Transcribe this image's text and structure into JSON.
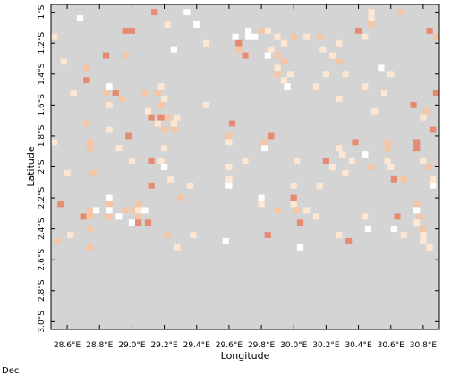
{
  "map": {
    "xlabel": "Longitude",
    "ylabel": "Latitude",
    "x_ticks": [
      "28.6°E",
      "28.8°E",
      "29.0°E",
      "29.2°E",
      "29.4°E",
      "29.6°E",
      "29.8°E",
      "30.0°E",
      "30.2°E",
      "30.4°E",
      "30.6°E",
      "30.8°E"
    ],
    "x_tick_values": [
      28.6,
      28.8,
      29.0,
      29.2,
      29.4,
      29.6,
      29.8,
      30.0,
      30.2,
      30.4,
      30.6,
      30.8
    ],
    "y_ticks": [
      "1°S",
      "1.2°S",
      "1.4°S",
      "1.6°S",
      "1.8°S",
      "2°S",
      "2.2°S",
      "2.4°S",
      "2.6°S",
      "2.8°S",
      "3.0°S"
    ],
    "y_tick_values": [
      -1.0,
      -1.2,
      -1.4,
      -1.6,
      -1.8,
      -2.0,
      -2.2,
      -2.4,
      -2.6,
      -2.8,
      -3.0
    ],
    "lon_range": [
      28.5,
      30.9
    ],
    "lat_range": [
      -3.05,
      -0.95
    ],
    "cell_size_deg": 0.04,
    "background_color": "#d4d4d4",
    "category_colors": {
      "white": "#ffffff",
      "light": "#fde7d2",
      "medium": "#f6c5a4",
      "dark": "#e78a72"
    },
    "cells": [
      [
        "dark",
        29.14,
        -1.0
      ],
      [
        "white",
        29.34,
        -1.0
      ],
      [
        "light",
        30.48,
        -1.0
      ],
      [
        "medium",
        30.66,
        -1.0
      ],
      [
        "white",
        28.68,
        -1.04
      ],
      [
        "light",
        30.48,
        -1.04
      ],
      [
        "light",
        29.22,
        -1.08
      ],
      [
        "white",
        29.4,
        -1.08
      ],
      [
        "medium",
        30.48,
        -1.08
      ],
      [
        "dark",
        28.96,
        -1.12
      ],
      [
        "dark",
        29.0,
        -1.12
      ],
      [
        "white",
        29.72,
        -1.12
      ],
      [
        "medium",
        29.8,
        -1.12
      ],
      [
        "light",
        29.84,
        -1.12
      ],
      [
        "dark",
        30.4,
        -1.12
      ],
      [
        "dark",
        30.84,
        -1.12
      ],
      [
        "light",
        28.52,
        -1.16
      ],
      [
        "white",
        29.64,
        -1.16
      ],
      [
        "white",
        29.72,
        -1.16
      ],
      [
        "white",
        29.76,
        -1.16
      ],
      [
        "light",
        29.9,
        -1.16
      ],
      [
        "medium",
        30.0,
        -1.16
      ],
      [
        "light",
        30.08,
        -1.16
      ],
      [
        "medium",
        30.16,
        -1.16
      ],
      [
        "light",
        30.44,
        -1.16
      ],
      [
        "medium",
        30.88,
        -1.16
      ],
      [
        "light",
        29.46,
        -1.2
      ],
      [
        "dark",
        29.66,
        -1.2
      ],
      [
        "light",
        29.94,
        -1.2
      ],
      [
        "light",
        30.28,
        -1.2
      ],
      [
        "white",
        29.26,
        -1.24
      ],
      [
        "medium",
        29.66,
        -1.24
      ],
      [
        "light",
        29.86,
        -1.24
      ],
      [
        "light",
        30.18,
        -1.24
      ],
      [
        "dark",
        28.84,
        -1.28
      ],
      [
        "medium",
        28.96,
        -1.28
      ],
      [
        "dark",
        29.7,
        -1.28
      ],
      [
        "white",
        29.84,
        -1.28
      ],
      [
        "medium",
        29.9,
        -1.28
      ],
      [
        "light",
        30.24,
        -1.28
      ],
      [
        "light",
        28.58,
        -1.32
      ],
      [
        "medium",
        29.94,
        -1.32
      ],
      [
        "medium",
        30.28,
        -1.32
      ],
      [
        "medium",
        28.72,
        -1.36
      ],
      [
        "light",
        29.9,
        -1.36
      ],
      [
        "white",
        30.54,
        -1.36
      ],
      [
        "medium",
        29.9,
        -1.4
      ],
      [
        "light",
        29.98,
        -1.4
      ],
      [
        "light",
        30.2,
        -1.4
      ],
      [
        "light",
        30.32,
        -1.4
      ],
      [
        "light",
        30.6,
        -1.4
      ],
      [
        "dark",
        28.72,
        -1.44
      ],
      [
        "light",
        29.94,
        -1.44
      ],
      [
        "white",
        28.86,
        -1.48
      ],
      [
        "light",
        29.18,
        -1.48
      ],
      [
        "white",
        29.96,
        -1.48
      ],
      [
        "light",
        30.14,
        -1.48
      ],
      [
        "light",
        30.44,
        -1.48
      ],
      [
        "light",
        28.64,
        -1.52
      ],
      [
        "medium",
        28.84,
        -1.52
      ],
      [
        "dark",
        28.9,
        -1.52
      ],
      [
        "medium",
        29.08,
        -1.52
      ],
      [
        "medium",
        29.16,
        -1.52
      ],
      [
        "light",
        30.56,
        -1.52
      ],
      [
        "dark",
        30.88,
        -1.52
      ],
      [
        "medium",
        28.94,
        -1.56
      ],
      [
        "light",
        29.2,
        -1.56
      ],
      [
        "light",
        30.28,
        -1.56
      ],
      [
        "light",
        28.86,
        -1.6
      ],
      [
        "medium",
        29.18,
        -1.6
      ],
      [
        "light",
        29.46,
        -1.6
      ],
      [
        "dark",
        30.74,
        -1.6
      ],
      [
        "light",
        29.1,
        -1.64
      ],
      [
        "light",
        30.5,
        -1.64
      ],
      [
        "medium",
        30.82,
        -1.64
      ],
      [
        "dark",
        29.12,
        -1.68
      ],
      [
        "dark",
        29.18,
        -1.68
      ],
      [
        "medium",
        29.22,
        -1.68
      ],
      [
        "light",
        29.28,
        -1.68
      ],
      [
        "light",
        30.8,
        -1.68
      ],
      [
        "medium",
        28.72,
        -1.72
      ],
      [
        "light",
        29.16,
        -1.72
      ],
      [
        "light",
        29.26,
        -1.72
      ],
      [
        "dark",
        29.62,
        -1.72
      ],
      [
        "light",
        28.86,
        -1.76
      ],
      [
        "medium",
        29.2,
        -1.76
      ],
      [
        "medium",
        29.26,
        -1.76
      ],
      [
        "dark",
        30.86,
        -1.76
      ],
      [
        "dark",
        28.98,
        -1.8
      ],
      [
        "medium",
        29.6,
        -1.8
      ],
      [
        "dark",
        29.86,
        -1.8
      ],
      [
        "light",
        28.52,
        -1.84
      ],
      [
        "medium",
        28.74,
        -1.84
      ],
      [
        "light",
        29.6,
        -1.84
      ],
      [
        "medium",
        29.82,
        -1.84
      ],
      [
        "dark",
        30.38,
        -1.84
      ],
      [
        "medium",
        30.58,
        -1.84
      ],
      [
        "dark",
        30.76,
        -1.84
      ],
      [
        "medium",
        28.74,
        -1.88
      ],
      [
        "light",
        28.92,
        -1.88
      ],
      [
        "light",
        29.2,
        -1.88
      ],
      [
        "white",
        29.82,
        -1.88
      ],
      [
        "light",
        30.28,
        -1.88
      ],
      [
        "medium",
        30.58,
        -1.88
      ],
      [
        "dark",
        30.76,
        -1.88
      ],
      [
        "light",
        30.3,
        -1.92
      ],
      [
        "white",
        30.44,
        -1.92
      ],
      [
        "light",
        29.0,
        -1.96
      ],
      [
        "dark",
        29.12,
        -1.96
      ],
      [
        "light",
        29.18,
        -1.96
      ],
      [
        "light",
        29.7,
        -1.96
      ],
      [
        "light",
        30.02,
        -1.96
      ],
      [
        "dark",
        30.2,
        -1.96
      ],
      [
        "light",
        30.36,
        -1.96
      ],
      [
        "light",
        30.58,
        -1.96
      ],
      [
        "light",
        30.8,
        -1.96
      ],
      [
        "white",
        29.2,
        -2.0
      ],
      [
        "light",
        29.6,
        -2.0
      ],
      [
        "light",
        30.24,
        -2.0
      ],
      [
        "medium",
        30.48,
        -2.0
      ],
      [
        "light",
        30.6,
        -2.0
      ],
      [
        "medium",
        30.84,
        -2.0
      ],
      [
        "light",
        28.6,
        -2.04
      ],
      [
        "medium",
        28.76,
        -2.04
      ],
      [
        "light",
        30.32,
        -2.04
      ],
      [
        "light",
        29.24,
        -2.08
      ],
      [
        "light",
        29.6,
        -2.08
      ],
      [
        "dark",
        30.62,
        -2.08
      ],
      [
        "medium",
        30.68,
        -2.08
      ],
      [
        "light",
        30.86,
        -2.08
      ],
      [
        "dark",
        29.12,
        -2.12
      ],
      [
        "light",
        29.36,
        -2.12
      ],
      [
        "white",
        29.6,
        -2.12
      ],
      [
        "light",
        30.0,
        -2.12
      ],
      [
        "light",
        30.16,
        -2.12
      ],
      [
        "white",
        30.86,
        -2.12
      ],
      [
        "white",
        28.86,
        -2.2
      ],
      [
        "medium",
        29.3,
        -2.2
      ],
      [
        "white",
        29.8,
        -2.2
      ],
      [
        "dark",
        30.0,
        -2.2
      ],
      [
        "dark",
        28.56,
        -2.24
      ],
      [
        "medium",
        28.86,
        -2.24
      ],
      [
        "medium",
        29.04,
        -2.24
      ],
      [
        "light",
        29.8,
        -2.24
      ],
      [
        "light",
        30.0,
        -2.24
      ],
      [
        "medium",
        30.76,
        -2.24
      ],
      [
        "medium",
        28.74,
        -2.28
      ],
      [
        "white",
        28.78,
        -2.28
      ],
      [
        "white",
        28.86,
        -2.28
      ],
      [
        "medium",
        28.96,
        -2.28
      ],
      [
        "medium",
        29.02,
        -2.28
      ],
      [
        "light",
        29.04,
        -2.28
      ],
      [
        "white",
        29.08,
        -2.28
      ],
      [
        "medium",
        29.9,
        -2.28
      ],
      [
        "medium",
        30.02,
        -2.28
      ],
      [
        "light",
        30.08,
        -2.28
      ],
      [
        "white",
        30.76,
        -2.28
      ],
      [
        "dark",
        28.7,
        -2.32
      ],
      [
        "medium",
        28.74,
        -2.32
      ],
      [
        "medium",
        28.86,
        -2.32
      ],
      [
        "white",
        28.92,
        -2.32
      ],
      [
        "medium",
        29.04,
        -2.32
      ],
      [
        "light",
        30.14,
        -2.32
      ],
      [
        "light",
        30.44,
        -2.32
      ],
      [
        "dark",
        30.64,
        -2.32
      ],
      [
        "medium",
        30.78,
        -2.32
      ],
      [
        "white",
        29.0,
        -2.36
      ],
      [
        "dark",
        29.04,
        -2.36
      ],
      [
        "dark",
        29.1,
        -2.36
      ],
      [
        "dark",
        30.04,
        -2.36
      ],
      [
        "light",
        30.76,
        -2.36
      ],
      [
        "medium",
        28.74,
        -2.4
      ],
      [
        "white",
        30.46,
        -2.4
      ],
      [
        "white",
        30.62,
        -2.4
      ],
      [
        "medium",
        30.8,
        -2.4
      ],
      [
        "light",
        28.62,
        -2.44
      ],
      [
        "medium",
        29.22,
        -2.44
      ],
      [
        "light",
        29.38,
        -2.44
      ],
      [
        "dark",
        29.84,
        -2.44
      ],
      [
        "light",
        30.28,
        -2.44
      ],
      [
        "light",
        30.68,
        -2.44
      ],
      [
        "light",
        30.8,
        -2.44
      ],
      [
        "medium",
        28.54,
        -2.48
      ],
      [
        "white",
        29.58,
        -2.48
      ],
      [
        "dark",
        30.34,
        -2.48
      ],
      [
        "light",
        30.8,
        -2.48
      ],
      [
        "medium",
        28.74,
        -2.52
      ],
      [
        "light",
        29.28,
        -2.52
      ],
      [
        "white",
        30.04,
        -2.52
      ],
      [
        "light",
        30.84,
        -2.52
      ]
    ]
  },
  "footer": {
    "month_label": "Dec"
  }
}
